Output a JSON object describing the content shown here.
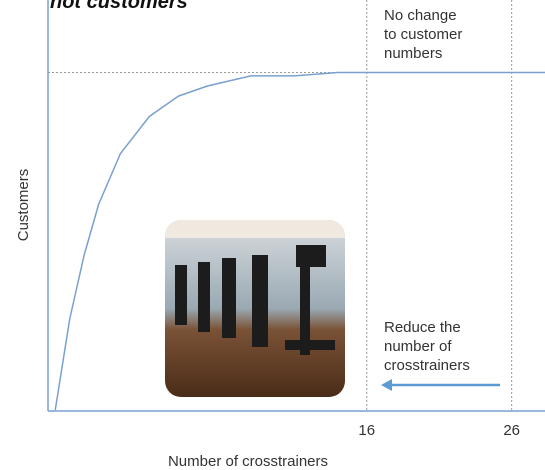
{
  "chart_data": {
    "type": "line",
    "title": "not customers",
    "x_label": "Number of crosstrainers",
    "y_label": "Customers",
    "x": [
      -5.5,
      -4.5,
      -3.5,
      -2.5,
      -1,
      1,
      3,
      5,
      8,
      11,
      14,
      16,
      20,
      24,
      28.3
    ],
    "series": [
      {
        "color": "#7aa0cf",
        "values": [
          0,
          0.27,
          0.46,
          0.61,
          0.76,
          0.87,
          0.93,
          0.96,
          0.99,
          0.99,
          1,
          1,
          1,
          1,
          1
        ]
      }
    ],
    "xlim": [
      -6,
      28.3
    ],
    "xticks": [
      16,
      26
    ],
    "ylim": [
      0,
      1.2
    ],
    "hline": 1,
    "annotations": [
      {
        "lines": [
          "No change",
          "to customer",
          "numbers"
        ]
      },
      {
        "lines": [
          "Reduce the",
          "number of",
          "crosstrainers"
        ],
        "arrow_color": "#5b9bd5"
      }
    ]
  }
}
